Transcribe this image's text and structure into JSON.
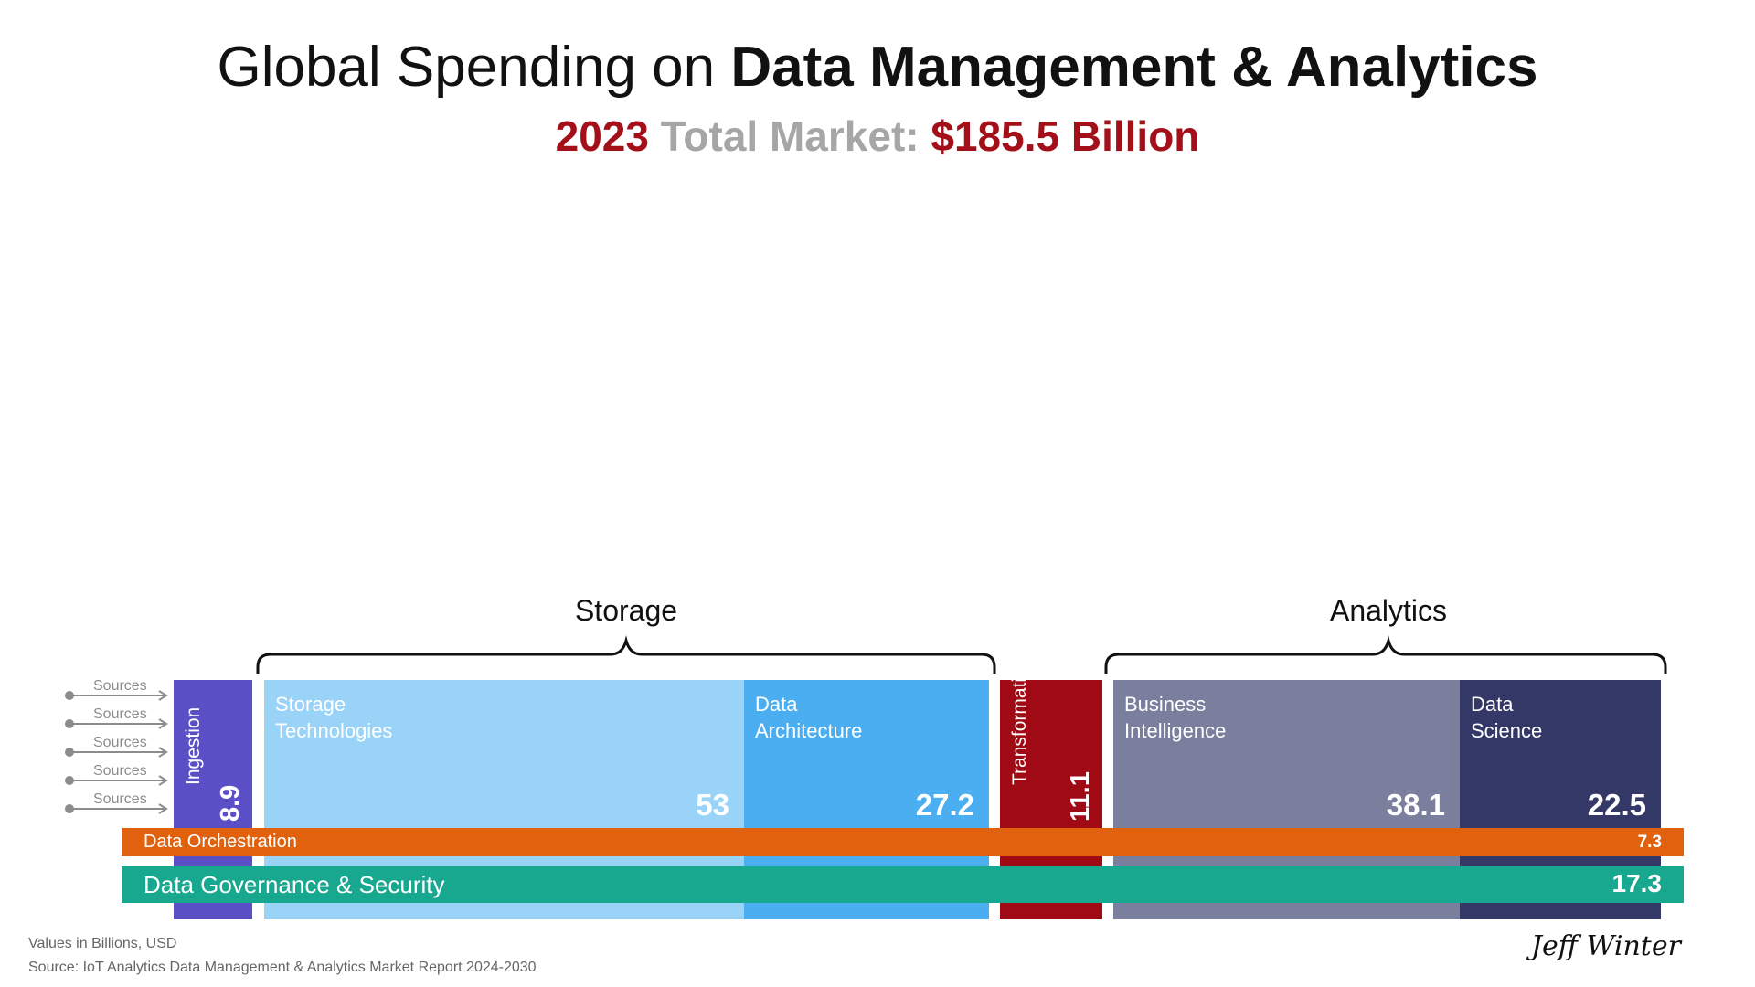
{
  "title": {
    "prefix": "Global Spending on ",
    "bold": "Data Management & Analytics"
  },
  "subtitle": {
    "year": "2023",
    "middle": " Total Market: ",
    "amount": "$185.5 Billion"
  },
  "groups": {
    "storage": "Storage",
    "analytics": "Analytics"
  },
  "sources": {
    "labels": [
      "Sources",
      "Sources",
      "Sources",
      "Sources",
      "Sources"
    ]
  },
  "chart_data": {
    "type": "bar",
    "title": "Global Spending on Data Management & Analytics",
    "units": "Billions, USD",
    "total": 185.5,
    "year": "2023",
    "categories": [
      "Ingestion",
      "Storage Technologies",
      "Data Architecture",
      "Transformation",
      "Business Intelligence",
      "Data Science",
      "Data Orchestration",
      "Data Governance & Security"
    ],
    "values": [
      8.9,
      53,
      27.2,
      11.1,
      38.1,
      22.5,
      7.3,
      17.3
    ],
    "segments": [
      {
        "name": "Ingestion",
        "label": "Ingestion",
        "value": 8.9,
        "display": "8.9",
        "color": "#5b4fc6",
        "group": ""
      },
      {
        "name": "Storage Technologies",
        "label": "Storage\nTechnologies",
        "value": 53,
        "display": "53",
        "color": "#9ad3f8",
        "group": "Storage"
      },
      {
        "name": "Data Architecture",
        "label": "Data\nArchitecture",
        "value": 27.2,
        "display": "27.2",
        "color": "#4aaef1",
        "group": "Storage"
      },
      {
        "name": "Transformation",
        "label": "Transformation",
        "value": 11.1,
        "display": "11.1",
        "color": "#a00a14",
        "group": ""
      },
      {
        "name": "Business Intelligence",
        "label": "Business\nIntelligence",
        "value": 38.1,
        "display": "38.1",
        "color": "#7a7f9d",
        "group": "Analytics"
      },
      {
        "name": "Data Science",
        "label": "Data\nScience",
        "value": 22.5,
        "display": "22.5",
        "color": "#333866",
        "group": "Analytics"
      }
    ],
    "bands": [
      {
        "name": "Data Orchestration",
        "value": 7.3,
        "display": "7.3",
        "color": "#e0620f"
      },
      {
        "name": "Data Governance & Security",
        "value": 17.3,
        "display": "17.3",
        "color": "#18a78f"
      }
    ]
  },
  "footer": {
    "units_note": "Values in Billions, USD",
    "source_note": "Source: IoT Analytics Data Management & Analytics Market Report 2024-2030",
    "signature": "Jeff Winter"
  }
}
